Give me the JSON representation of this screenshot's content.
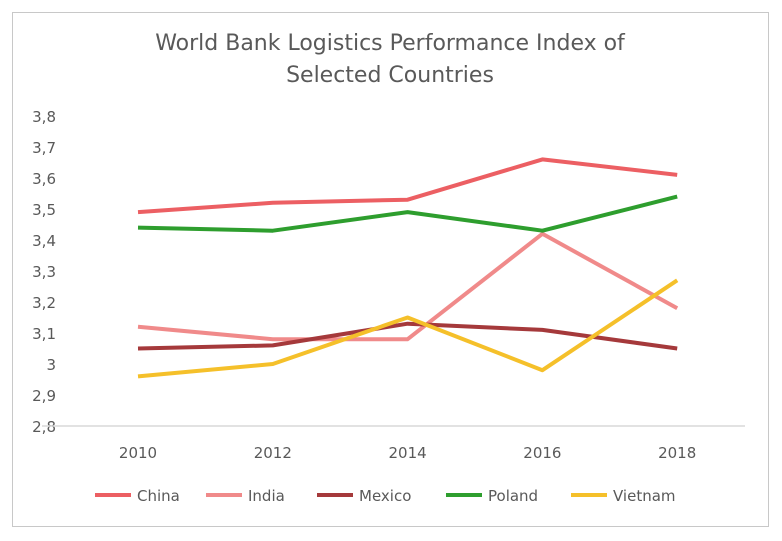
{
  "chart_data": {
    "type": "line",
    "title_lines": [
      "World Bank Logistics Performance Index of",
      "Selected Countries"
    ],
    "xlabel": "",
    "ylabel": "",
    "categories": [
      "2010",
      "2012",
      "2014",
      "2016",
      "2018"
    ],
    "ylim": [
      2.8,
      3.8
    ],
    "yticks": [
      "2,8",
      "2,9",
      "3",
      "3,1",
      "3,2",
      "3,3",
      "3,4",
      "3,5",
      "3,6",
      "3,7",
      "3,8"
    ],
    "grid": false,
    "legend_position": "bottom",
    "series": [
      {
        "name": "China",
        "color": "#ec5f63",
        "values": [
          3.49,
          3.52,
          3.53,
          3.66,
          3.61
        ]
      },
      {
        "name": "India",
        "color": "#f08a8a",
        "values": [
          3.12,
          3.08,
          3.08,
          3.42,
          3.18
        ]
      },
      {
        "name": "Mexico",
        "color": "#a5393b",
        "values": [
          3.05,
          3.06,
          3.13,
          3.11,
          3.05
        ]
      },
      {
        "name": "Poland",
        "color": "#2e9e2e",
        "values": [
          3.44,
          3.43,
          3.49,
          3.43,
          3.54
        ]
      },
      {
        "name": "Vietnam",
        "color": "#f5c02a",
        "values": [
          2.96,
          3.0,
          3.15,
          2.98,
          3.27
        ]
      }
    ]
  }
}
